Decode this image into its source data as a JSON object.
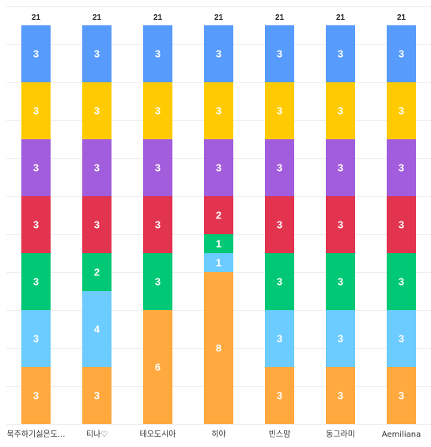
{
  "chart_data": {
    "type": "bar",
    "stacked": true,
    "categories": [
      "묵주하기싫은도...",
      "티나♡",
      "테오도시아",
      "히야",
      "빈스맘",
      "동그라미",
      "Aemiliana"
    ],
    "totals": [
      21,
      21,
      21,
      21,
      21,
      21,
      21
    ],
    "series": [
      {
        "color": "#FFA93E",
        "values": [
          3,
          3,
          6,
          8,
          3,
          3,
          3
        ]
      },
      {
        "color": "#6CCBFF",
        "values": [
          3,
          4,
          0,
          1,
          3,
          3,
          3
        ]
      },
      {
        "color": "#00C875",
        "values": [
          3,
          2,
          3,
          1,
          3,
          3,
          3
        ]
      },
      {
        "color": "#E2334F",
        "values": [
          3,
          3,
          3,
          2,
          3,
          3,
          3
        ]
      },
      {
        "color": "#A25DDC",
        "values": [
          3,
          3,
          3,
          3,
          3,
          3,
          3
        ]
      },
      {
        "color": "#FFCB00",
        "values": [
          3,
          3,
          3,
          3,
          3,
          3,
          3
        ]
      },
      {
        "color": "#579BFC",
        "values": [
          3,
          3,
          3,
          3,
          3,
          3,
          3
        ]
      }
    ],
    "ylim": [
      0,
      21
    ],
    "grid": true,
    "legend": "none"
  }
}
